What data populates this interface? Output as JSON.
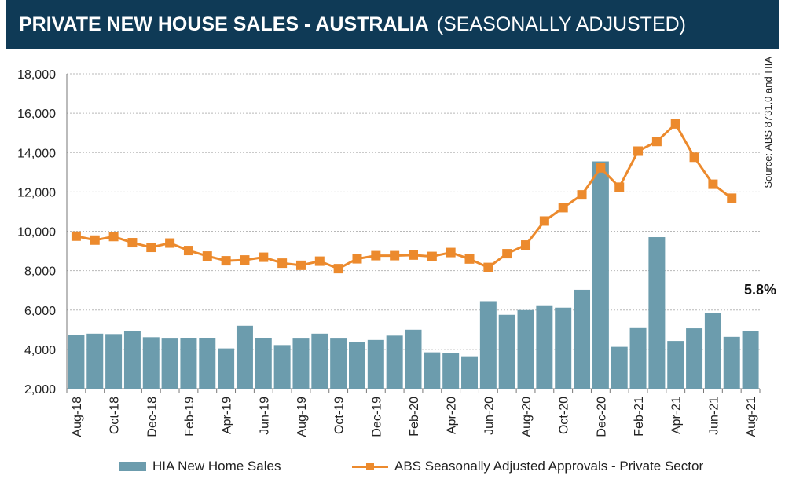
{
  "header": {
    "title_main": "PRIVATE NEW HOUSE SALES -  AUSTRALIA",
    "title_sub": "(SEASONALLY ADJUSTED)"
  },
  "colors": {
    "header_bg": "#0f3a56",
    "bar": "#6c9cad",
    "line": "#ec8a2d"
  },
  "chart_data": {
    "type": "bar",
    "title": "PRIVATE NEW HOUSE SALES - AUSTRALIA (SEASONALLY ADJUSTED)",
    "categories": [
      "Aug-18",
      "Sep-18",
      "Oct-18",
      "Nov-18",
      "Dec-18",
      "Jan-19",
      "Feb-19",
      "Mar-19",
      "Apr-19",
      "May-19",
      "Jun-19",
      "Jul-19",
      "Aug-19",
      "Sep-19",
      "Oct-19",
      "Nov-19",
      "Dec-19",
      "Jan-20",
      "Feb-20",
      "Mar-20",
      "Apr-20",
      "May-20",
      "Jun-20",
      "Jul-20",
      "Aug-20",
      "Sep-20",
      "Oct-20",
      "Nov-20",
      "Dec-20",
      "Jan-21",
      "Feb-21",
      "Mar-21",
      "Apr-21",
      "May-21",
      "Jun-21",
      "Jul-21",
      "Aug-21"
    ],
    "tick_labels": [
      "Aug-18",
      "Oct-18",
      "Dec-18",
      "Feb-19",
      "Apr-19",
      "Jun-19",
      "Aug-19",
      "Oct-19",
      "Dec-19",
      "Feb-20",
      "Apr-20",
      "Jun-20",
      "Aug-20",
      "Oct-20",
      "Dec-20",
      "Feb-21",
      "Apr-21",
      "Jun-21",
      "Aug-21"
    ],
    "series": [
      {
        "name": "HIA New Home Sales",
        "type": "bar",
        "values": [
          4750,
          4800,
          4780,
          4950,
          4620,
          4550,
          4580,
          4580,
          4050,
          5200,
          4580,
          4220,
          4550,
          4800,
          4550,
          4380,
          4480,
          4700,
          5000,
          3850,
          3800,
          3650,
          6450,
          5760,
          6000,
          6200,
          6120,
          7030,
          13550,
          4130,
          5080,
          9700,
          4430,
          5070,
          5840,
          4640,
          4930
        ]
      },
      {
        "name": "ABS Seasonally Adjusted Approvals - Private Sector",
        "type": "line",
        "values": [
          9750,
          9550,
          9730,
          9420,
          9180,
          9400,
          9020,
          8740,
          8500,
          8540,
          8680,
          8380,
          8270,
          8480,
          8100,
          8600,
          8760,
          8760,
          8790,
          8720,
          8920,
          8590,
          8160,
          8860,
          9300,
          10520,
          11200,
          11850,
          13220,
          12240,
          14070,
          14560,
          15450,
          13760,
          12390,
          11680,
          null
        ]
      }
    ],
    "ylim": [
      2000,
      18000
    ],
    "yticks": [
      "2,000",
      "4,000",
      "6,000",
      "8,000",
      "10,000",
      "12,000",
      "14,000",
      "16,000",
      "18,000"
    ],
    "grid": true,
    "annotation": "5.8%",
    "source": "Source: ABS 8731.0 and HIA",
    "legend_position": "bottom"
  }
}
